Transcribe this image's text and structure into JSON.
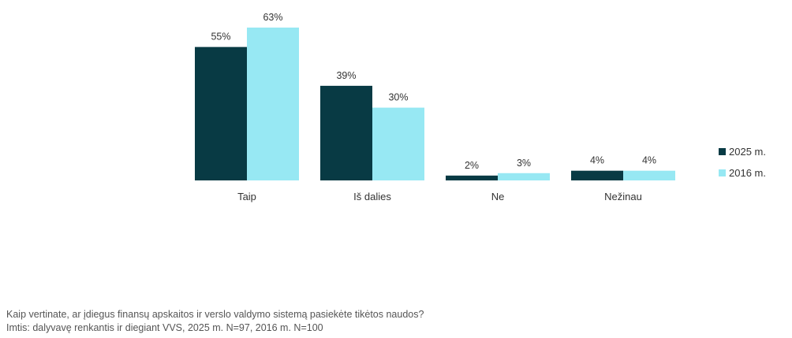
{
  "chart_data": {
    "type": "bar",
    "categories": [
      "Taip",
      "Iš dalies",
      "Ne",
      "Nežinau"
    ],
    "series": [
      {
        "name": "2025 m.",
        "values": [
          55,
          39,
          2,
          4
        ],
        "color": "#083a44"
      },
      {
        "name": "2016 m.",
        "values": [
          63,
          30,
          3,
          4
        ],
        "color": "#97e8f3"
      }
    ],
    "value_suffix": "%",
    "ylim": [
      0,
      63
    ],
    "legend": "right",
    "grid": false
  },
  "caption": {
    "question": "Kaip vertinate, ar įdiegus finansų apskaitos ir verslo valdymo sistemą pasiekėte tikėtos naudos?",
    "sample": "Imtis: dalyvavę renkantis ir diegiant VVS, 2025 m. N=97, 2016 m. N=100"
  }
}
